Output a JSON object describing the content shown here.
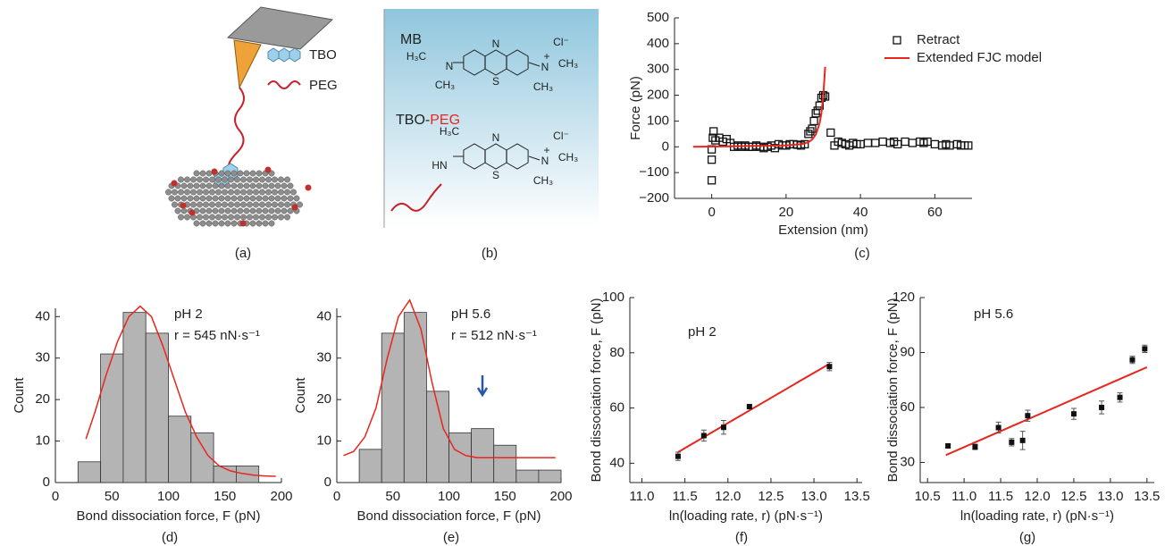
{
  "illustrations": [
    {
      "label": "(a)",
      "legend": [
        "TBO",
        "PEG"
      ]
    },
    {
      "label": "(b)",
      "texts": [
        "MB",
        "Cl⁻",
        "TBO-",
        "PEG",
        "Cl⁻",
        "N",
        "S",
        "N",
        "H₃C",
        "CH₃",
        "N",
        "+",
        "CH₃",
        "CH₃",
        "N",
        "S",
        "H₃C",
        "HN",
        "N",
        "+",
        "CH₃",
        "CH₃"
      ]
    }
  ],
  "chart_data": [
    {
      "type": "scatter",
      "label": "(c)",
      "x_label": "Extension (nm)",
      "y_label": "Force (pN)",
      "xlim": [
        -10,
        70
      ],
      "ylim": [
        -200,
        500
      ],
      "xticks": [
        0,
        20,
        40,
        60
      ],
      "yticks": [
        {
          "value": -200,
          "label": "−200"
        },
        {
          "value": -100,
          "label": "−100"
        },
        0,
        100,
        200,
        300,
        400,
        500
      ],
      "series": [
        {
          "name": "Retract",
          "style": "open-square",
          "color": "#111111",
          "x": [
            0,
            0,
            0,
            0.3,
            0.5,
            1,
            2,
            3,
            4,
            5,
            6,
            7,
            8,
            9,
            10,
            11,
            12,
            13,
            14,
            15,
            16,
            17,
            18,
            19,
            20,
            21,
            22,
            23,
            24,
            25,
            26,
            26.5,
            27,
            27.5,
            28,
            28.5,
            29,
            29.5,
            30,
            30.5,
            32,
            33,
            34,
            35,
            36,
            37,
            38,
            39,
            40,
            42,
            44,
            46,
            48,
            49,
            50,
            52,
            54,
            56,
            57,
            58,
            60,
            62,
            63,
            64,
            66,
            67,
            68,
            69
          ],
          "values": [
            -130,
            -50,
            -10,
            35,
            60,
            25,
            35,
            20,
            30,
            15,
            0,
            5,
            0,
            5,
            0,
            0,
            5,
            0,
            -5,
            0,
            5,
            -5,
            10,
            5,
            5,
            10,
            10,
            8,
            5,
            10,
            50,
            60,
            70,
            100,
            130,
            140,
            160,
            190,
            200,
            195,
            55,
            5,
            20,
            15,
            10,
            5,
            15,
            10,
            10,
            15,
            15,
            20,
            15,
            20,
            10,
            20,
            15,
            20,
            15,
            20,
            10,
            5,
            10,
            5,
            10,
            5,
            5,
            5
          ]
        },
        {
          "name": "Extended FJC model",
          "style": "line",
          "color": "#e8261e",
          "x": [
            -5,
            0,
            5,
            10,
            15,
            20,
            22,
            24,
            25,
            26,
            27,
            28,
            29,
            29.5,
            30,
            30.3,
            30.5
          ],
          "values": [
            0,
            1,
            2,
            3,
            4,
            6,
            8,
            10,
            13,
            18,
            28,
            48,
            90,
            130,
            200,
            260,
            310
          ]
        }
      ]
    },
    {
      "type": "histogram",
      "label": "(d)",
      "x_label": "Bond dissociation force, F (pN)",
      "y_label": "Count",
      "annotations": [
        "pH 2",
        "r = 545 nN·s⁻¹"
      ],
      "xlim": [
        0,
        200
      ],
      "ylim": [
        0,
        42
      ],
      "xticks": [
        0,
        50,
        100,
        150,
        200
      ],
      "yticks": [
        0,
        10,
        20,
        30,
        40
      ],
      "bins": [
        20,
        40,
        60,
        80,
        100,
        120,
        140,
        160,
        180
      ],
      "counts": [
        5,
        31,
        41,
        36,
        16,
        12,
        4,
        4
      ],
      "color": "#b4b4b4",
      "fit_curve": {
        "color": "#e8261e",
        "x": [
          27,
          35,
          45,
          55,
          65,
          75,
          85,
          95,
          105,
          115,
          125,
          135,
          145,
          155,
          165,
          175,
          185,
          195
        ],
        "y": [
          10.5,
          17,
          26,
          34,
          40,
          42.5,
          40,
          33,
          25,
          17,
          11,
          6.5,
          4,
          2.8,
          2.2,
          1.8,
          1.6,
          1.5
        ]
      }
    },
    {
      "type": "histogram",
      "label": "(e)",
      "x_label": "Bond dissociation force, F (pN)",
      "y_label": "Count",
      "annotations": [
        "pH 5.6",
        "r = 512 nN·s⁻¹"
      ],
      "xlim": [
        0,
        200
      ],
      "ylim": [
        0,
        42
      ],
      "xticks": [
        0,
        50,
        100,
        150,
        200
      ],
      "yticks": [
        0,
        10,
        20,
        30,
        40
      ],
      "bins": [
        20,
        40,
        60,
        80,
        100,
        120,
        140,
        160,
        180,
        200
      ],
      "counts": [
        8,
        36,
        41,
        22,
        12,
        13,
        9,
        3,
        3
      ],
      "color": "#b4b4b4",
      "fit_curve": {
        "color": "#e8261e",
        "x": [
          6,
          15,
          25,
          35,
          45,
          55,
          65,
          75,
          85,
          95,
          105,
          115,
          125,
          135,
          150,
          170,
          195
        ],
        "y": [
          6.5,
          7.5,
          11,
          18,
          30,
          40,
          44,
          37,
          24,
          13,
          8,
          6.5,
          6,
          6,
          6,
          6,
          6
        ]
      }
    },
    {
      "type": "errorbar",
      "label": "(f)",
      "x_label": "ln(loading rate, r) (pN·s⁻¹)",
      "y_label": "Bond dissociation force, F (pN)",
      "annotations": [
        "pH 2"
      ],
      "xlim": [
        10.86,
        13.56
      ],
      "ylim": [
        33,
        100
      ],
      "xticks": [
        {
          "value": 11,
          "label": "11.0"
        },
        {
          "value": 11.5,
          "label": "11.5"
        },
        {
          "value": 12,
          "label": "12.0"
        },
        {
          "value": 12.5,
          "label": "12.5"
        },
        {
          "value": 13,
          "label": "13.0"
        },
        {
          "value": 13.5,
          "label": "13.5"
        }
      ],
      "yticks": [
        40,
        60,
        80,
        100
      ],
      "color": "#111111",
      "x": [
        11.42,
        11.72,
        11.95,
        12.25,
        13.18
      ],
      "values": [
        42.5,
        50,
        53,
        60.5,
        75
      ],
      "errors": [
        1.5,
        2,
        2.5,
        0.5,
        1.5
      ],
      "fit_line": {
        "color": "#e8261e",
        "x": [
          11.42,
          13.18
        ],
        "y": [
          44,
          76
        ]
      }
    },
    {
      "type": "errorbar",
      "label": "(g)",
      "x_label": "ln(loading rate, r) (pN·s⁻¹)",
      "y_label": "Bond dissociation force, F (pN)",
      "annotations": [
        "pH 5.6"
      ],
      "xlim": [
        10.4,
        13.6
      ],
      "ylim": [
        19,
        120
      ],
      "xticks": [
        10.5,
        {
          "value": 11,
          "label": "11.0"
        },
        11.5,
        {
          "value": 12,
          "label": "12.0"
        },
        12.5,
        {
          "value": 13,
          "label": "13.0"
        },
        13.5
      ],
      "yticks": [
        30,
        60,
        90,
        120
      ],
      "color": "#111111",
      "x": [
        10.78,
        11.15,
        11.47,
        11.65,
        11.8,
        11.87,
        12.5,
        12.88,
        13.13,
        13.3,
        13.47
      ],
      "values": [
        39,
        38.5,
        49,
        41,
        42,
        55.5,
        56.5,
        60,
        65.5,
        86,
        92
      ],
      "errors": [
        1,
        1.5,
        3,
        2,
        5,
        3,
        3,
        3.5,
        2.5,
        2,
        2
      ],
      "fit_line": {
        "color": "#e8261e",
        "x": [
          10.75,
          13.5
        ],
        "y": [
          34,
          82
        ]
      }
    }
  ]
}
